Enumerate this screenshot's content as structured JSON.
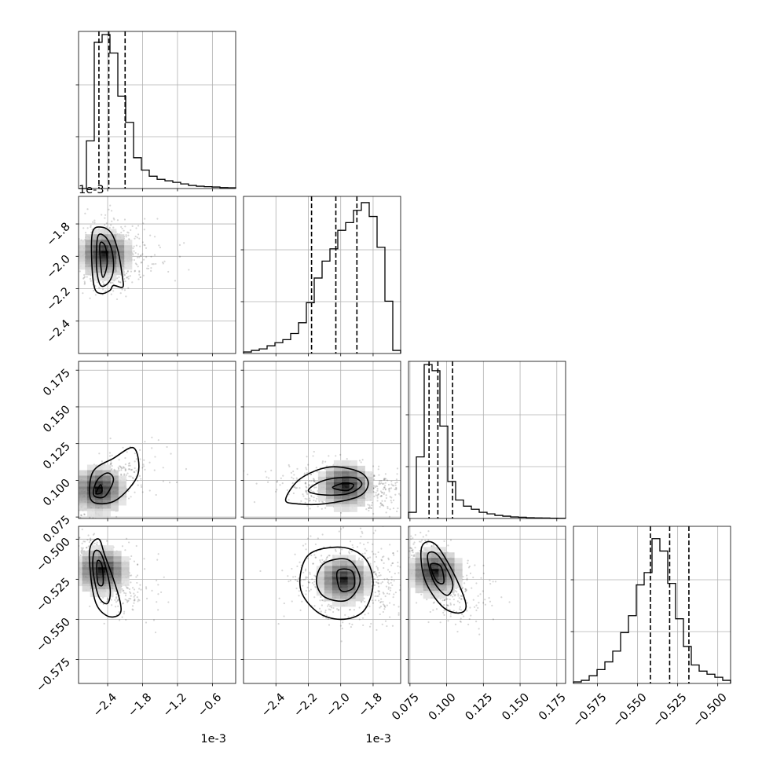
{
  "chart_data": {
    "type": "corner",
    "parameters": [
      {
        "index": 0,
        "range": [
          -2.9,
          -0.2
        ],
        "scale_label": "1e-3",
        "ticks": [
          -2.4,
          -1.8,
          -1.2,
          -0.6
        ],
        "tick_labels": [
          "−2.4",
          "−1.8",
          "−1.2",
          "−0.6"
        ],
        "quantiles": [
          -2.55,
          -2.38,
          -2.1
        ]
      },
      {
        "index": 1,
        "range": [
          -2.6,
          -1.63
        ],
        "scale_label": "1e-3",
        "ticks": [
          -2.4,
          -2.2,
          -2.0,
          -1.8
        ],
        "tick_labels": [
          "−2.4",
          "−2.2",
          "−2.0",
          "−1.8"
        ],
        "quantiles": [
          -2.18,
          -2.03,
          -1.9
        ]
      },
      {
        "index": 2,
        "range": [
          0.074,
          0.181
        ],
        "scale_label": "",
        "ticks": [
          0.075,
          0.1,
          0.125,
          0.15,
          0.175
        ],
        "tick_labels": [
          "0.075",
          "0.100",
          "0.125",
          "0.150",
          "0.175"
        ],
        "quantiles": [
          0.088,
          0.094,
          0.104
        ]
      },
      {
        "index": 3,
        "range": [
          -0.59,
          -0.492
        ],
        "scale_label": "",
        "ticks": [
          -0.575,
          -0.55,
          -0.525,
          -0.5
        ],
        "tick_labels": [
          "−0.575",
          "−0.550",
          "−0.525",
          "−0.500"
        ],
        "quantiles": [
          -0.542,
          -0.53,
          -0.518
        ]
      }
    ],
    "histograms": [
      {
        "parameter": 0,
        "values": [
          0.0,
          0.31,
          0.95,
          1.0,
          0.88,
          0.6,
          0.43,
          0.2,
          0.12,
          0.08,
          0.06,
          0.05,
          0.04,
          0.03,
          0.02,
          0.015,
          0.012,
          0.01,
          0.006,
          0.005
        ]
      },
      {
        "parameter": 1,
        "values": [
          0.01,
          0.02,
          0.03,
          0.05,
          0.07,
          0.09,
          0.13,
          0.2,
          0.33,
          0.49,
          0.6,
          0.68,
          0.8,
          0.85,
          0.93,
          0.98,
          0.89,
          0.69,
          0.34,
          0.02
        ]
      },
      {
        "parameter": 2,
        "values": [
          0.04,
          0.4,
          1.0,
          0.96,
          0.6,
          0.24,
          0.12,
          0.08,
          0.06,
          0.04,
          0.03,
          0.02,
          0.015,
          0.01,
          0.008,
          0.005,
          0.004,
          0.003,
          0.002,
          0.001
        ]
      },
      {
        "parameter": 3,
        "values": [
          0.01,
          0.02,
          0.05,
          0.09,
          0.14,
          0.21,
          0.33,
          0.44,
          0.64,
          0.72,
          0.94,
          0.86,
          0.65,
          0.42,
          0.24,
          0.12,
          0.08,
          0.06,
          0.04,
          0.02
        ]
      }
    ],
    "pairs": [
      {
        "x": 0,
        "y": 1,
        "peak": [
          -2.45,
          -1.99
        ],
        "spread": [
          0.16,
          0.065
        ],
        "corr": 0.0,
        "contours": [
          [
            [
              -2.66,
              -1.85
            ],
            [
              -2.5,
              -1.82
            ],
            [
              -2.33,
              -1.86
            ],
            [
              -2.22,
              -1.97
            ],
            [
              -2.15,
              -2.12
            ],
            [
              -2.14,
              -2.19
            ],
            [
              -2.3,
              -2.18
            ],
            [
              -2.36,
              -2.21
            ],
            [
              -2.5,
              -2.23
            ],
            [
              -2.62,
              -2.2
            ],
            [
              -2.67,
              -2.05
            ]
          ],
          [
            [
              -2.57,
              -1.88
            ],
            [
              -2.44,
              -1.88
            ],
            [
              -2.33,
              -1.96
            ],
            [
              -2.3,
              -2.08
            ],
            [
              -2.38,
              -2.16
            ],
            [
              -2.52,
              -2.18
            ],
            [
              -2.59,
              -2.07
            ]
          ],
          [
            [
              -2.53,
              -1.92
            ],
            [
              -2.44,
              -1.94
            ],
            [
              -2.41,
              -2.05
            ],
            [
              -2.48,
              -2.13
            ],
            [
              -2.52,
              -2.05
            ]
          ]
        ]
      },
      {
        "x": 0,
        "y": 2,
        "peak": [
          -2.55,
          0.093
        ],
        "spread": [
          0.18,
          0.006
        ],
        "corr": 0.6,
        "contours": [
          [
            [
              -2.7,
              0.088
            ],
            [
              -2.65,
              0.106
            ],
            [
              -2.3,
              0.115
            ],
            [
              -1.95,
              0.122
            ],
            [
              -1.88,
              0.104
            ],
            [
              -2.2,
              0.088
            ],
            [
              -2.5,
              0.084
            ]
          ],
          [
            [
              -2.64,
              0.09
            ],
            [
              -2.58,
              0.1
            ],
            [
              -2.4,
              0.105
            ],
            [
              -2.3,
              0.1
            ],
            [
              -2.45,
              0.089
            ]
          ],
          [
            [
              -2.6,
              0.091
            ],
            [
              -2.52,
              0.097
            ],
            [
              -2.5,
              0.092
            ]
          ]
        ]
      },
      {
        "x": 0,
        "y": 3,
        "peak": [
          -2.5,
          -0.52
        ],
        "spread": [
          0.15,
          0.006
        ],
        "corr": -0.55,
        "contours": [
          [
            [
              -2.7,
              -0.505
            ],
            [
              -2.55,
              -0.5
            ],
            [
              -2.45,
              -0.51
            ],
            [
              -2.3,
              -0.525
            ],
            [
              -2.18,
              -0.54
            ],
            [
              -2.2,
              -0.547
            ],
            [
              -2.4,
              -0.548
            ],
            [
              -2.6,
              -0.54
            ],
            [
              -2.7,
              -0.52
            ]
          ],
          [
            [
              -2.63,
              -0.508
            ],
            [
              -2.5,
              -0.51
            ],
            [
              -2.36,
              -0.53
            ],
            [
              -2.4,
              -0.54
            ],
            [
              -2.55,
              -0.536
            ],
            [
              -2.65,
              -0.52
            ]
          ],
          [
            [
              -2.58,
              -0.514
            ],
            [
              -2.5,
              -0.516
            ],
            [
              -2.48,
              -0.528
            ],
            [
              -2.57,
              -0.527
            ]
          ]
        ]
      },
      {
        "x": 1,
        "y": 2,
        "peak": [
          -1.97,
          0.096
        ],
        "spread": [
          0.11,
          0.005
        ],
        "corr": -0.15,
        "contours": [
          [
            [
              -2.34,
              0.087
            ],
            [
              -2.25,
              0.101
            ],
            [
              -2.07,
              0.109
            ],
            [
              -1.89,
              0.106
            ],
            [
              -1.83,
              0.098
            ],
            [
              -1.89,
              0.089
            ],
            [
              -2.1,
              0.084
            ],
            [
              -2.27,
              0.084
            ]
          ],
          [
            [
              -2.2,
              0.093
            ],
            [
              -2.1,
              0.1
            ],
            [
              -1.93,
              0.102
            ],
            [
              -1.87,
              0.097
            ],
            [
              -1.95,
              0.091
            ],
            [
              -2.1,
              0.09
            ]
          ],
          [
            [
              -2.05,
              0.095
            ],
            [
              -1.98,
              0.098
            ],
            [
              -1.92,
              0.097
            ],
            [
              -1.96,
              0.093
            ]
          ]
        ]
      },
      {
        "x": 1,
        "y": 3,
        "peak": [
          -1.98,
          -0.526
        ],
        "spread": [
          0.1,
          0.008
        ],
        "corr": 0.0,
        "contours": [
          [
            [
              -2.2,
              -0.51
            ],
            [
              -2.0,
              -0.505
            ],
            [
              -1.85,
              -0.512
            ],
            [
              -1.8,
              -0.528
            ],
            [
              -1.86,
              -0.545
            ],
            [
              -2.0,
              -0.55
            ],
            [
              -2.15,
              -0.545
            ],
            [
              -2.25,
              -0.53
            ]
          ],
          [
            [
              -2.1,
              -0.515
            ],
            [
              -1.95,
              -0.513
            ],
            [
              -1.88,
              -0.526
            ],
            [
              -1.96,
              -0.538
            ],
            [
              -2.1,
              -0.536
            ],
            [
              -2.15,
              -0.526
            ]
          ],
          [
            [
              -2.02,
              -0.52
            ],
            [
              -1.93,
              -0.52
            ],
            [
              -1.92,
              -0.53
            ],
            [
              -2.0,
              -0.532
            ]
          ]
        ]
      },
      {
        "x": 2,
        "y": 3,
        "peak": [
          0.092,
          -0.521
        ],
        "spread": [
          0.006,
          0.007
        ],
        "corr": -0.6,
        "contours": [
          [
            [
              0.083,
              -0.505
            ],
            [
              0.092,
              -0.503
            ],
            [
              0.104,
              -0.52
            ],
            [
              0.113,
              -0.54
            ],
            [
              0.109,
              -0.546
            ],
            [
              0.097,
              -0.542
            ],
            [
              0.085,
              -0.525
            ]
          ],
          [
            [
              0.087,
              -0.51
            ],
            [
              0.094,
              -0.51
            ],
            [
              0.104,
              -0.527
            ],
            [
              0.1,
              -0.535
            ],
            [
              0.091,
              -0.526
            ]
          ],
          [
            [
              0.089,
              -0.516
            ],
            [
              0.096,
              -0.517
            ],
            [
              0.098,
              -0.527
            ],
            [
              0.093,
              -0.526
            ]
          ]
        ]
      }
    ]
  }
}
